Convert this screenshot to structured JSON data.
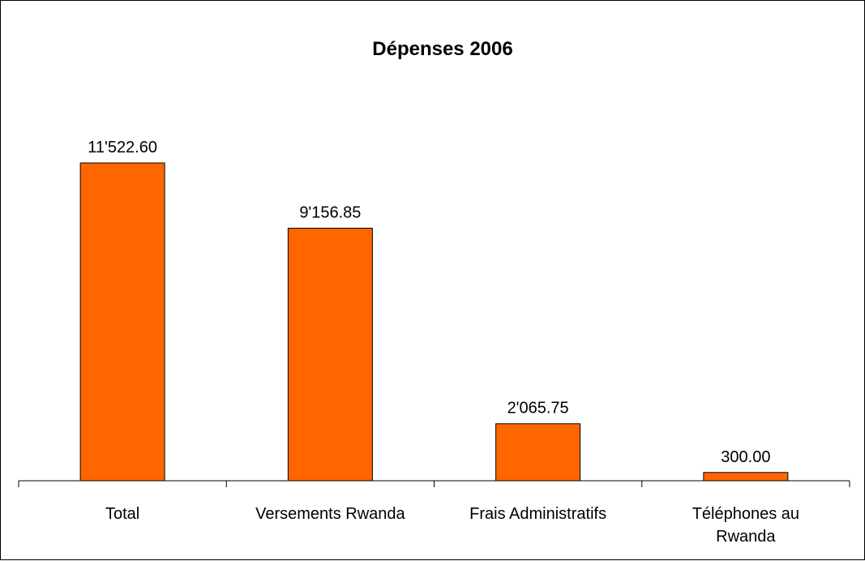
{
  "chart_data": {
    "type": "bar",
    "title": "Dépenses 2006",
    "categories": [
      "Total",
      "Versements Rwanda",
      "Frais Administratifs",
      "Téléphones au Rwanda"
    ],
    "category_lines": [
      [
        "Total"
      ],
      [
        "Versements Rwanda"
      ],
      [
        "Frais Administratifs"
      ],
      [
        "Téléphones au",
        "Rwanda"
      ]
    ],
    "values": [
      11522.6,
      9156.85,
      2065.75,
      300.0
    ],
    "data_labels": [
      "11'522.60",
      "9'156.85",
      "2'065.75",
      "300.00"
    ],
    "xlabel": "",
    "ylabel": "",
    "ylim": [
      0,
      11522.6
    ],
    "grid": false,
    "legend": "none",
    "bar_color": "#FF6600",
    "bar_stroke": "#000000"
  }
}
